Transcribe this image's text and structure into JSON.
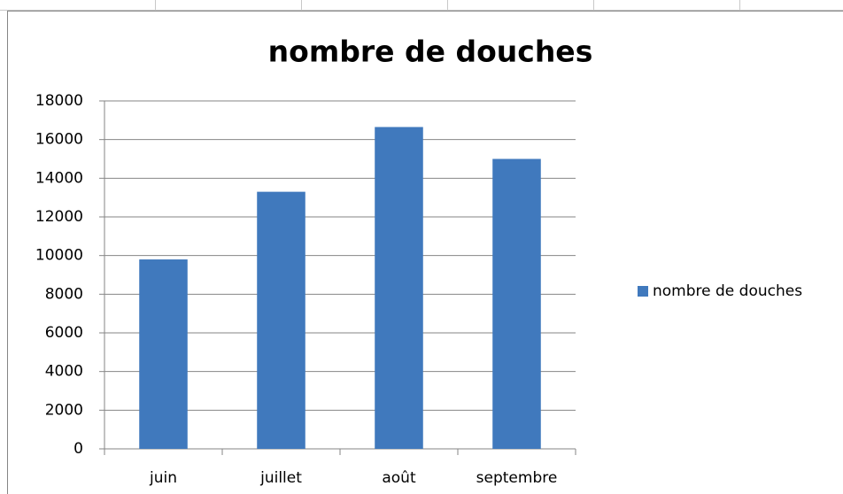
{
  "chart_data": {
    "type": "bar",
    "title": "nombre de douches",
    "categories": [
      "juin",
      "juillet",
      "août",
      "septembre"
    ],
    "series": [
      {
        "name": "nombre de douches",
        "color": "#4079bd",
        "values": [
          9800,
          13300,
          16650,
          15000
        ]
      }
    ],
    "ylim": [
      0,
      18000
    ],
    "yticks": [
      0,
      2000,
      4000,
      6000,
      8000,
      10000,
      12000,
      14000,
      16000,
      18000
    ],
    "grid": true,
    "legend": "right"
  }
}
